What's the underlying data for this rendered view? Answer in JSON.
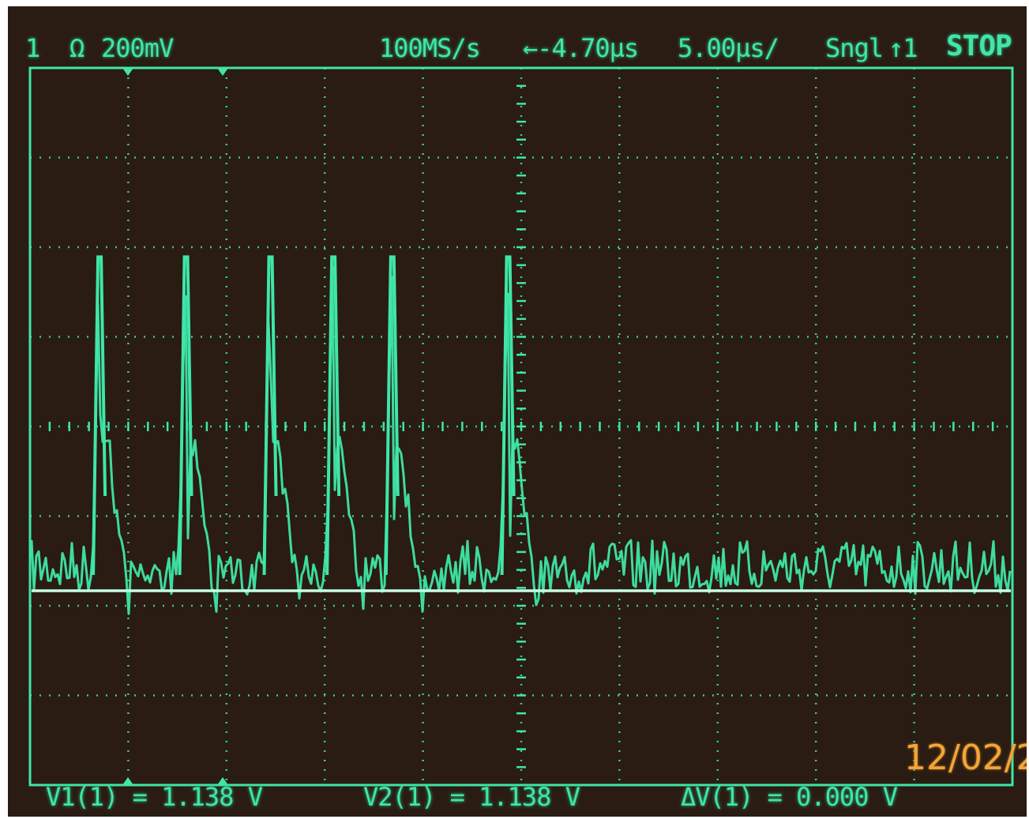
{
  "header": {
    "channel": "1",
    "coupling": "Ω",
    "volts_per_div": "200mV",
    "sample_rate": "100MS/s",
    "delay": "←-4.70µs",
    "time_per_div": "5.00µs/",
    "trigger_mode": "Sngl",
    "trigger_source": "↑1",
    "run_state": "STOP"
  },
  "measurements": {
    "v1": "V1(1) = 1.138 V",
    "v2": "V2(1) = 1.138 V",
    "dv": "ΔV(1) = 0.000 V"
  },
  "date_stamp": "12/02/2",
  "colors": {
    "trace": "#3fe6a8",
    "grid": "#3fe6a8",
    "background": "#2a1c12",
    "date": "#f2a53a"
  },
  "chart_data": {
    "type": "line",
    "grid": {
      "x_divisions": 10,
      "y_divisions": 8
    },
    "axis_units": {
      "x": "µs",
      "y": "V"
    },
    "baseline_v": 1.138,
    "pulses": [
      {
        "t_us": -21.5,
        "amplitude_div": 3.6
      },
      {
        "t_us": -17.1,
        "amplitude_div": 3.6
      },
      {
        "t_us": -12.8,
        "amplitude_div": 3.6
      },
      {
        "t_us": -9.6,
        "amplitude_div": 3.6
      },
      {
        "t_us": -6.6,
        "amplitude_div": 3.6
      },
      {
        "t_us": -0.7,
        "amplitude_div": 3.6
      }
    ]
  }
}
